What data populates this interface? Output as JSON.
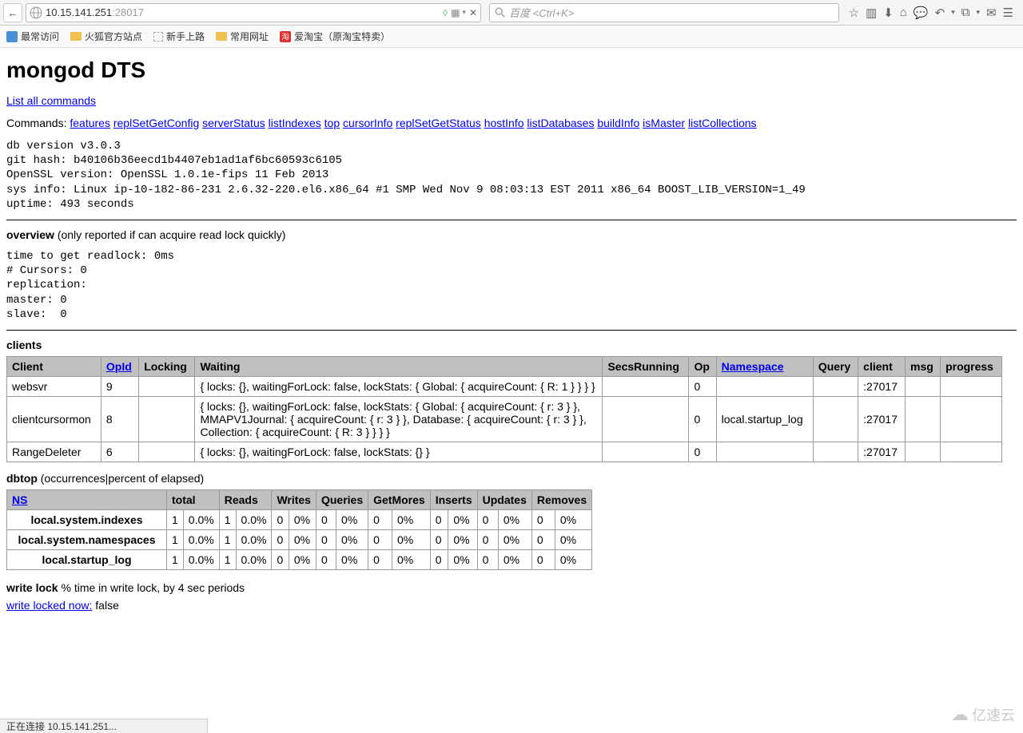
{
  "browser": {
    "url_host": "10.15.141.251",
    "url_port": ":28017",
    "search_placeholder": "百度 <Ctrl+K>",
    "bookmarks": [
      "最常访问",
      "火狐官方站点",
      "新手上路",
      "常用网址",
      "爱淘宝（原淘宝特卖）"
    ],
    "status_text": "正在连接 10.15.141.251..."
  },
  "page": {
    "title": "mongod DTS",
    "list_all": "List all commands",
    "commands_label": "Commands: ",
    "commands": [
      "features",
      "replSetGetConfig",
      "serverStatus",
      "listIndexes",
      "top",
      "cursorInfo",
      "replSetGetStatus",
      "hostInfo",
      "listDatabases",
      "buildInfo",
      "isMaster",
      "listCollections"
    ],
    "version_block": "db version v3.0.3\ngit hash: b40106b36eecd1b4407eb1ad1af6bc60593c6105\nOpenSSL version: OpenSSL 1.0.1e-fips 11 Feb 2013\nsys info: Linux ip-10-182-86-231 2.6.32-220.el6.x86_64 #1 SMP Wed Nov 9 08:03:13 EST 2011 x86_64 BOOST_LIB_VERSION=1_49\nuptime: 493 seconds",
    "overview_label": "overview",
    "overview_note": " (only reported if can acquire read lock quickly)",
    "overview_block": "time to get readlock: 0ms\n# Cursors: 0\nreplication: \nmaster: 0\nslave:  0",
    "clients_label": "clients",
    "clients_headers": [
      "Client",
      "OpId",
      "Locking",
      "Waiting",
      "SecsRunning",
      "Op",
      "Namespace",
      "Query",
      "client",
      "msg",
      "progress"
    ],
    "clients_rows": [
      {
        "client": "websvr",
        "opid": "9",
        "locking": "",
        "waiting": "{ locks: {}, waitingForLock: false, lockStats: { Global: { acquireCount: { R: 1 } } } }",
        "secs": "",
        "op": "0",
        "ns": "",
        "query": "",
        "clientaddr": ":27017",
        "msg": "",
        "progress": ""
      },
      {
        "client": "clientcursormon",
        "opid": "8",
        "locking": "",
        "waiting": "{ locks: {}, waitingForLock: false, lockStats: { Global: { acquireCount: { r: 3 } }, MMAPV1Journal: { acquireCount: { r: 3 } }, Database: { acquireCount: { r: 3 } }, Collection: { acquireCount: { R: 3 } } } }",
        "secs": "",
        "op": "0",
        "ns": "local.startup_log",
        "query": "",
        "clientaddr": ":27017",
        "msg": "",
        "progress": ""
      },
      {
        "client": "RangeDeleter",
        "opid": "6",
        "locking": "",
        "waiting": "{ locks: {}, waitingForLock: false, lockStats: {} }",
        "secs": "",
        "op": "0",
        "ns": "",
        "query": "",
        "clientaddr": ":27017",
        "msg": "",
        "progress": ""
      }
    ],
    "dbtop_label": "dbtop",
    "dbtop_note": " (occurrences|percent of elapsed)",
    "dbtop_headers": [
      "NS",
      "total",
      "",
      "Reads",
      "",
      "Writes",
      "",
      "Queries",
      "",
      "GetMores",
      "",
      "Inserts",
      "",
      "Updates",
      "",
      "Removes",
      ""
    ],
    "dbtop_rows": [
      {
        "ns": "local.system.indexes",
        "cells": [
          "1",
          "0.0%",
          "1",
          "0.0%",
          "0",
          "0%",
          "0",
          "0%",
          "0",
          "0%",
          "0",
          "0%",
          "0",
          "0%",
          "0",
          "0%"
        ]
      },
      {
        "ns": "local.system.namespaces",
        "cells": [
          "1",
          "0.0%",
          "1",
          "0.0%",
          "0",
          "0%",
          "0",
          "0%",
          "0",
          "0%",
          "0",
          "0%",
          "0",
          "0%",
          "0",
          "0%"
        ]
      },
      {
        "ns": "local.startup_log",
        "cells": [
          "1",
          "0.0%",
          "1",
          "0.0%",
          "0",
          "0%",
          "0",
          "0%",
          "0",
          "0%",
          "0",
          "0%",
          "0",
          "0%",
          "0",
          "0%"
        ]
      }
    ],
    "writelock_label": "write lock",
    "writelock_note": " % time in write lock, by 4 sec periods",
    "writelock_link": "write locked now:",
    "writelock_val": " false"
  },
  "watermark": "亿速云"
}
